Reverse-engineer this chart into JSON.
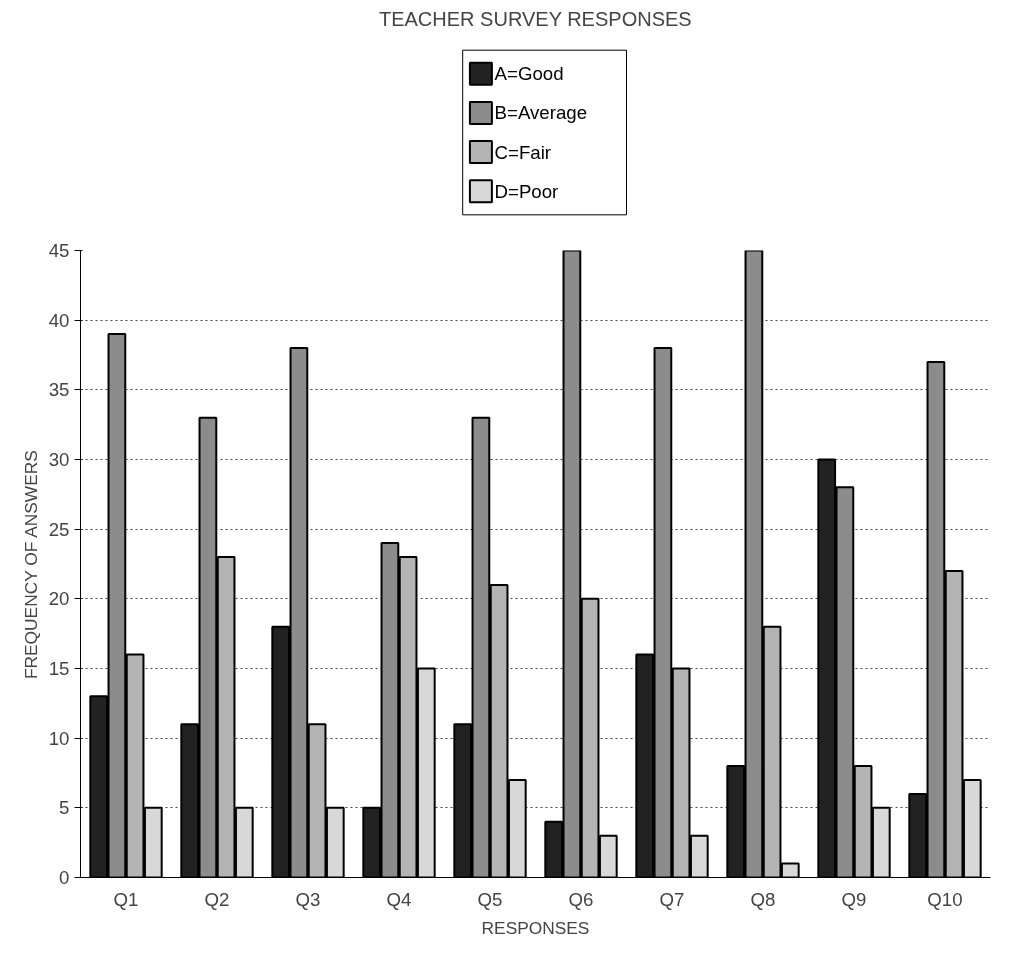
{
  "chart_data": {
    "type": "bar",
    "title": "TEACHER SURVEY RESPONSES",
    "xlabel": "RESPONSES",
    "ylabel": "FREQUENCY OF ANSWERS",
    "categories": [
      "Q1",
      "Q2",
      "Q3",
      "Q4",
      "Q5",
      "Q6",
      "Q7",
      "Q8",
      "Q9",
      "Q10"
    ],
    "series": [
      {
        "name": "A=Good",
        "color": "#222222",
        "values": [
          13,
          11,
          18,
          5,
          11,
          4,
          16,
          8,
          30,
          6
        ]
      },
      {
        "name": "B=Average",
        "color": "#8c8c8c",
        "values": [
          39,
          33,
          38,
          24,
          33,
          45,
          38,
          45,
          28,
          37
        ]
      },
      {
        "name": "C=Fair",
        "color": "#b4b4b4",
        "values": [
          16,
          23,
          11,
          23,
          21,
          20,
          15,
          18,
          8,
          22
        ]
      },
      {
        "name": "D=Poor",
        "color": "#d8d8d8",
        "values": [
          5,
          5,
          5,
          15,
          7,
          3,
          3,
          1,
          5,
          7
        ]
      }
    ],
    "ylim": [
      0,
      45
    ],
    "yticks": [
      0,
      5,
      10,
      15,
      20,
      25,
      30,
      35,
      40,
      45
    ],
    "grid": "y",
    "legend": "top"
  }
}
